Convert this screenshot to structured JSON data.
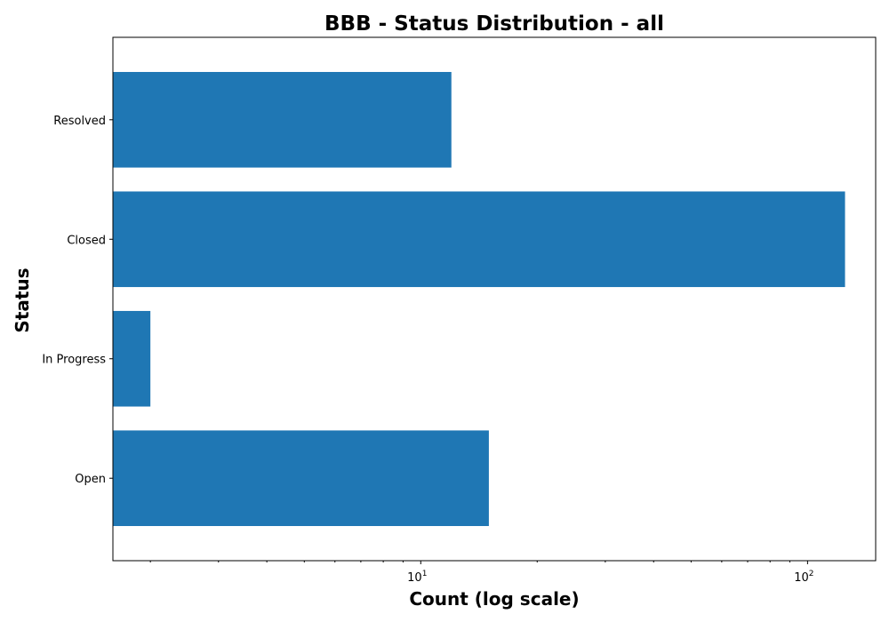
{
  "chart_data": {
    "type": "bar",
    "orientation": "horizontal",
    "title": "BBB - Status Distribution - all",
    "xlabel": "Count (log scale)",
    "ylabel": "Status",
    "x_scale": "log",
    "xlim": [
      1.6,
      150
    ],
    "grid": false,
    "categories": [
      "Open",
      "In Progress",
      "Closed",
      "Resolved"
    ],
    "values": [
      15,
      2,
      125,
      12
    ],
    "color": "#1f77b4",
    "x_ticks": [
      {
        "value": 10,
        "base": "10",
        "exp": "1"
      },
      {
        "value": 100,
        "base": "10",
        "exp": "2"
      }
    ]
  }
}
